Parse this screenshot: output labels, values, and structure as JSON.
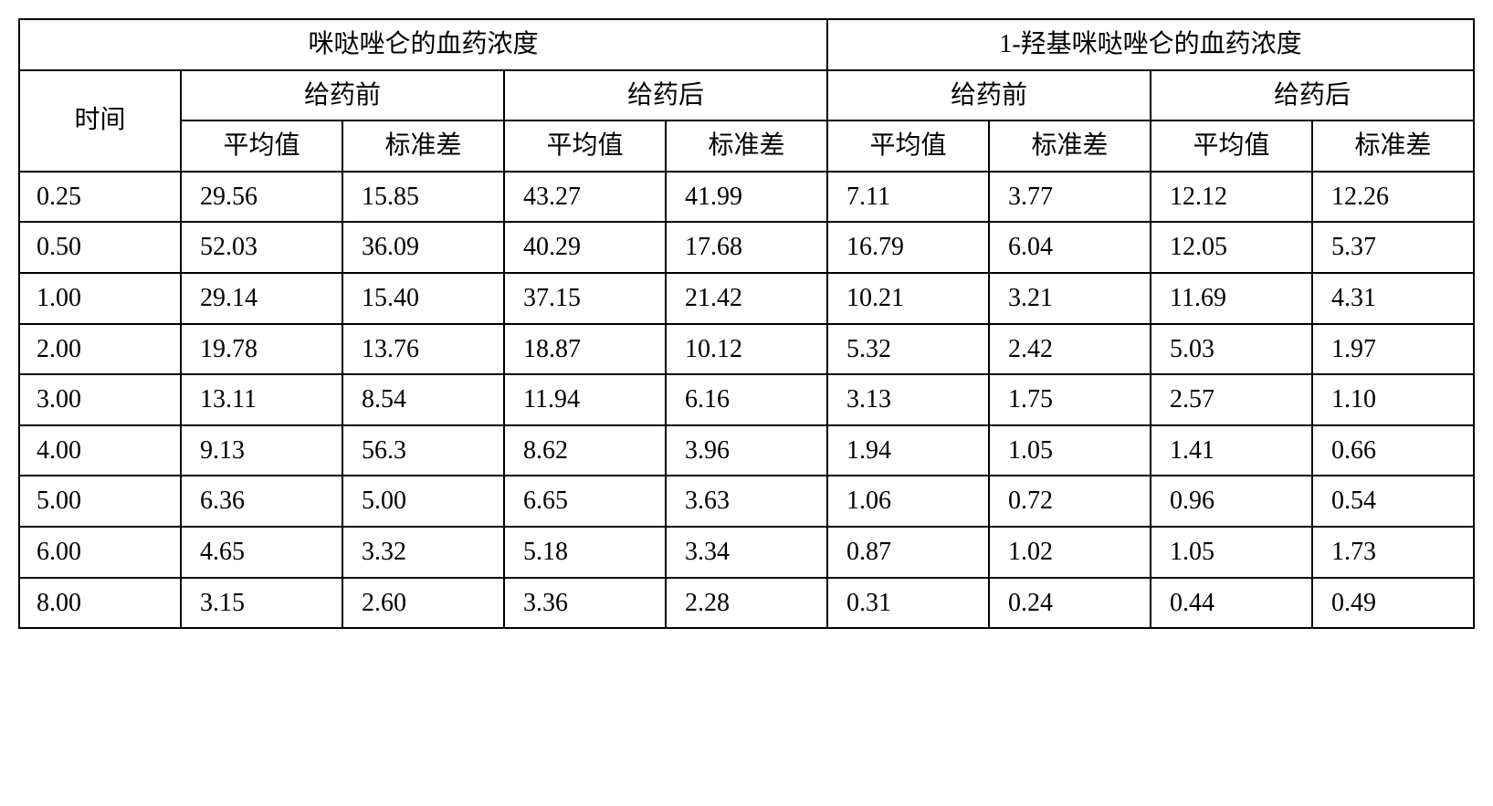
{
  "table": {
    "type": "table",
    "background_color": "#ffffff",
    "border_color": "#000000",
    "border_width": 2,
    "font_size": 28,
    "font_family_cn": "SimSun",
    "font_family_num": "Times New Roman",
    "header1": {
      "left": "咪哒唑仑的血药浓度",
      "right": "1-羟基咪哒唑仑的血药浓度"
    },
    "header2": {
      "time": "时间",
      "pre": "给药前",
      "post": "给药后"
    },
    "header3": {
      "mean": "平均值",
      "std": "标准差"
    },
    "rows": [
      {
        "time": "0.25",
        "v": [
          "29.56",
          "15.85",
          "43.27",
          "41.99",
          "7.11",
          "3.77",
          "12.12",
          "12.26"
        ]
      },
      {
        "time": "0.50",
        "v": [
          "52.03",
          "36.09",
          "40.29",
          "17.68",
          "16.79",
          "6.04",
          "12.05",
          "5.37"
        ]
      },
      {
        "time": "1.00",
        "v": [
          "29.14",
          "15.40",
          "37.15",
          "21.42",
          "10.21",
          "3.21",
          "11.69",
          "4.31"
        ]
      },
      {
        "time": "2.00",
        "v": [
          "19.78",
          "13.76",
          "18.87",
          "10.12",
          "5.32",
          "2.42",
          "5.03",
          "1.97"
        ]
      },
      {
        "time": "3.00",
        "v": [
          "13.11",
          "8.54",
          "11.94",
          "6.16",
          "3.13",
          "1.75",
          "2.57",
          "1.10"
        ]
      },
      {
        "time": "4.00",
        "v": [
          "9.13",
          "56.3",
          "8.62",
          "3.96",
          "1.94",
          "1.05",
          "1.41",
          "0.66"
        ]
      },
      {
        "time": "5.00",
        "v": [
          "6.36",
          "5.00",
          "6.65",
          "3.63",
          "1.06",
          "0.72",
          "0.96",
          "0.54"
        ]
      },
      {
        "time": "6.00",
        "v": [
          "4.65",
          "3.32",
          "5.18",
          "3.34",
          "0.87",
          "1.02",
          "1.05",
          "1.73"
        ]
      },
      {
        "time": "8.00",
        "v": [
          "3.15",
          "2.60",
          "3.36",
          "2.28",
          "0.31",
          "0.24",
          "0.44",
          "0.49"
        ]
      }
    ]
  }
}
